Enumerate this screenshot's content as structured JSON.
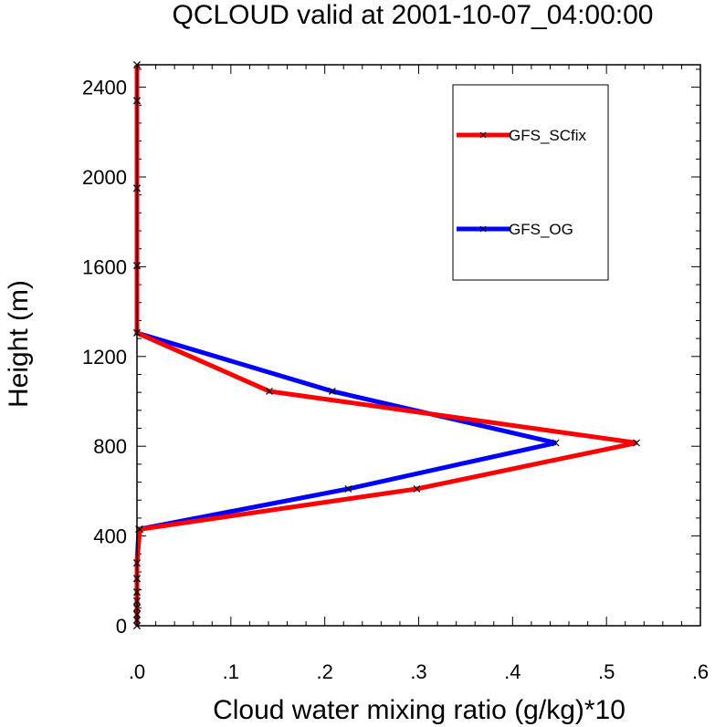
{
  "chart_data": {
    "type": "line",
    "title": "QCLOUD valid at 2001-10-07_04:00:00",
    "xlabel": "Cloud water mixing ratio (g/kg)*10",
    "ylabel": "Height (m)",
    "xlim": [
      0,
      0.6
    ],
    "ylim": [
      0,
      2500
    ],
    "xticks": [
      ".0",
      ".1",
      ".2",
      ".3",
      ".4",
      ".5",
      ".6"
    ],
    "yticks": [
      "0",
      "400",
      "800",
      "1200",
      "1600",
      "2000",
      "2400"
    ],
    "legend": "top-right",
    "series": [
      {
        "name": "GFS_SCfix",
        "color": "#ff0000",
        "marker": "x",
        "points": [
          {
            "x": 0.0,
            "y": 0
          },
          {
            "x": 0.0,
            "y": 25
          },
          {
            "x": 0.0,
            "y": 50
          },
          {
            "x": 0.0,
            "y": 80
          },
          {
            "x": 0.0,
            "y": 110
          },
          {
            "x": 0.0,
            "y": 150
          },
          {
            "x": 0.0,
            "y": 210
          },
          {
            "x": 0.0,
            "y": 280
          },
          {
            "x": 0.003,
            "y": 430
          },
          {
            "x": 0.298,
            "y": 610
          },
          {
            "x": 0.532,
            "y": 815
          },
          {
            "x": 0.141,
            "y": 1045
          },
          {
            "x": 0.0,
            "y": 1305
          },
          {
            "x": 0.0,
            "y": 1605
          },
          {
            "x": 0.0,
            "y": 1950
          },
          {
            "x": 0.0,
            "y": 2340
          },
          {
            "x": 0.0,
            "y": 2500
          }
        ]
      },
      {
        "name": "GFS_OG",
        "color": "#0000ff",
        "marker": "x",
        "points": [
          {
            "x": 0.0,
            "y": 0
          },
          {
            "x": 0.0,
            "y": 25
          },
          {
            "x": 0.0,
            "y": 50
          },
          {
            "x": 0.0,
            "y": 80
          },
          {
            "x": 0.0,
            "y": 110
          },
          {
            "x": 0.0,
            "y": 150
          },
          {
            "x": 0.0,
            "y": 210
          },
          {
            "x": 0.0,
            "y": 280
          },
          {
            "x": 0.002,
            "y": 430
          },
          {
            "x": 0.225,
            "y": 610
          },
          {
            "x": 0.446,
            "y": 815
          },
          {
            "x": 0.208,
            "y": 1045
          },
          {
            "x": 0.0,
            "y": 1305
          },
          {
            "x": 0.0,
            "y": 1605
          },
          {
            "x": 0.0,
            "y": 1950
          },
          {
            "x": 0.0,
            "y": 2340
          },
          {
            "x": 0.0,
            "y": 2500
          }
        ]
      }
    ]
  }
}
